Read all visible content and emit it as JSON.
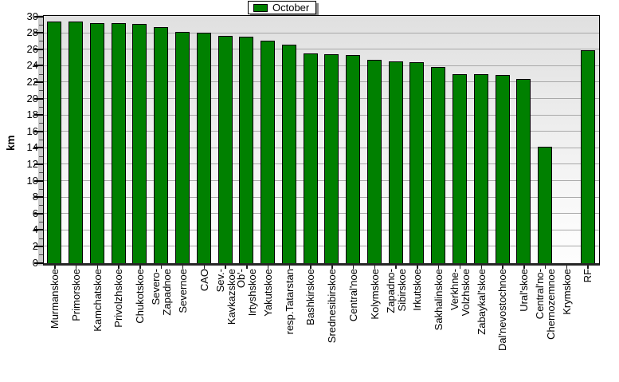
{
  "legend": {
    "label": "October"
  },
  "colors": {
    "bar_fill": "#008000",
    "bar_border": "#000000",
    "gridline": "#a9a9a9",
    "plot_bg_top": "#e0e0e0",
    "plot_bg_bottom": "#fdfdfd"
  },
  "chart_data": {
    "type": "bar",
    "title": "",
    "xlabel": "",
    "ylabel": "km",
    "ylim": [
      0,
      30
    ],
    "ytick_step": 2,
    "yticks": [
      0,
      2,
      4,
      6,
      8,
      10,
      12,
      14,
      16,
      18,
      20,
      22,
      24,
      26,
      28,
      30
    ],
    "grid": true,
    "legend_position": "top-center",
    "legend_entries": [
      "October"
    ],
    "categories": [
      "Murmanskoe",
      "Primorskoe",
      "Kamchatskoe",
      "Privolzhskoe",
      "Chukotskoe",
      "Severo-\nZapadnoe",
      "Severnoe",
      "CAO",
      "Sev.-\nKavkazskoe",
      "Ob'-\nIrtyshskoe",
      "Yakutskoe",
      "resp.Tatarstan",
      "Bashkirskoe",
      "Srednesibirskoe",
      "Central'noe",
      "Kolymskoe",
      "Zapadno-\nSibirskoe",
      "Irkutskoe",
      "Sakhalinskoe",
      "Verkhne-\nVolzhskoe",
      "Zabaykal'skoe",
      "Dal'nevostochnoe",
      "Ural'skoe",
      "Central'no-\nChernozemnoe",
      "Krymskoe",
      "RF"
    ],
    "series": [
      {
        "name": "October",
        "values": [
          29.4,
          29.4,
          29.2,
          29.2,
          29.1,
          28.7,
          28.2,
          28.1,
          27.7,
          27.6,
          27.1,
          26.6,
          25.5,
          25.4,
          25.3,
          24.8,
          24.6,
          24.5,
          23.9,
          23.0,
          23.0,
          22.9,
          22.4,
          14.2,
          0,
          25.9
        ]
      }
    ]
  }
}
